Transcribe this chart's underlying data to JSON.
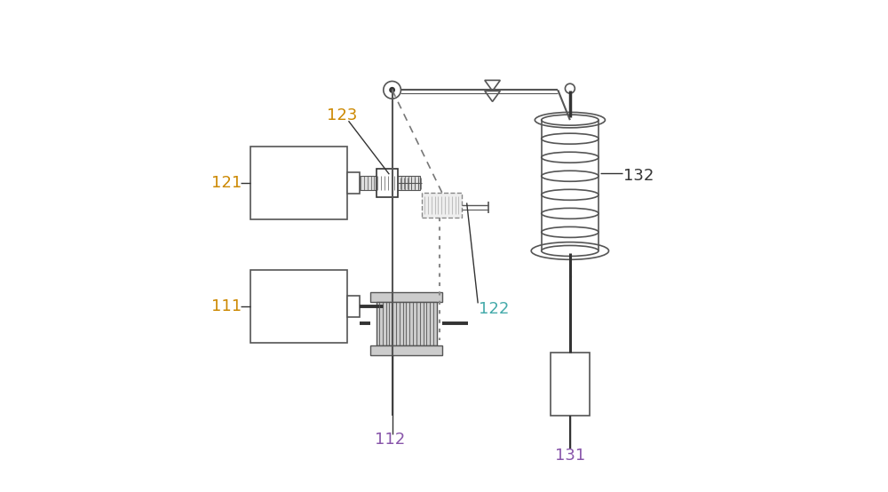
{
  "bg_color": "#ffffff",
  "line_color": "#555555",
  "dark_color": "#333333",
  "label_color_orange": "#cc8800",
  "label_color_purple": "#8855aa",
  "label_color_cyan": "#44aaaa",
  "label_color_dark": "#333333",
  "fig_width": 10.0,
  "fig_height": 5.54,
  "dpi": 100
}
